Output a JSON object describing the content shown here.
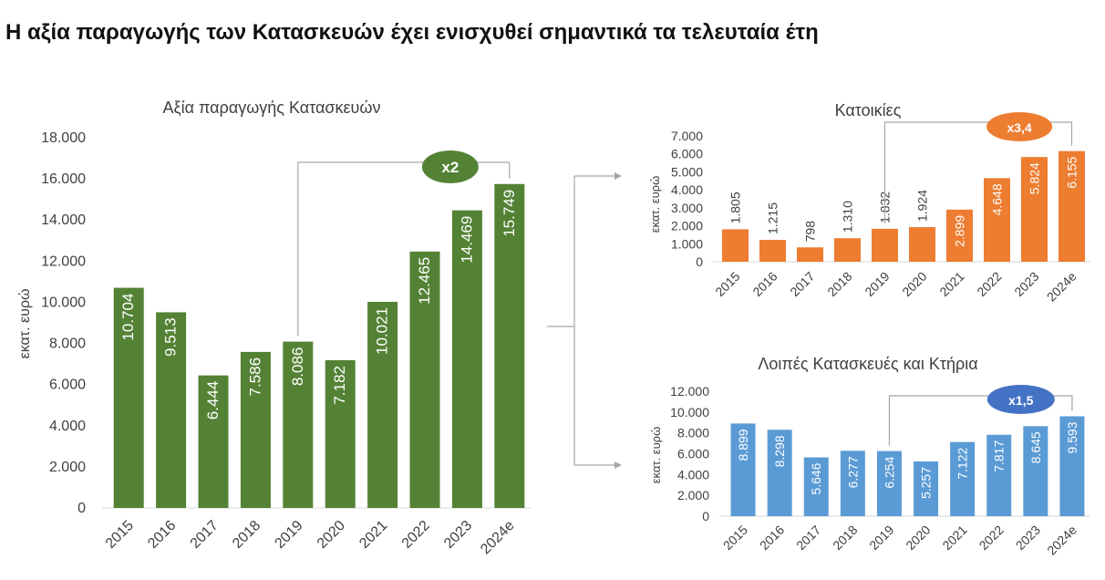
{
  "headline": "Η αξία παραγωγής των Κατασκευών έχει ενισχυθεί σημαντικά τα τελευταία έτη",
  "chart_data": [
    {
      "id": "total",
      "type": "bar",
      "title": "Αξία παραγωγής Κατασκευών",
      "ylabel": "εκατ. ευρώ",
      "xlabel": "",
      "categories": [
        "2015",
        "2016",
        "2017",
        "2018",
        "2019",
        "2020",
        "2021",
        "2022",
        "2023",
        "2024e"
      ],
      "values": [
        10704,
        9513,
        6444,
        7586,
        8086,
        7182,
        10021,
        12465,
        14469,
        15749
      ],
      "value_labels": [
        "10.704",
        "9.513",
        "6.444",
        "7.586",
        "8.086",
        "7.182",
        "10.021",
        "12.465",
        "14.469",
        "15.749"
      ],
      "ylim": [
        0,
        18000
      ],
      "yticks": [
        0,
        2000,
        4000,
        6000,
        8000,
        10000,
        12000,
        14000,
        16000,
        18000
      ],
      "ytick_labels": [
        "0",
        "2.000",
        "4.000",
        "6.000",
        "8.000",
        "10.000",
        "12.000",
        "14.000",
        "16.000",
        "18.000"
      ],
      "color": "#548235",
      "grid": false,
      "annotation": {
        "text": "x2",
        "from": "2019",
        "to": "2024e",
        "color": "#548235"
      }
    },
    {
      "id": "housing",
      "type": "bar",
      "title": "Κατοικίες",
      "ylabel": "εκατ. ευρώ",
      "xlabel": "",
      "categories": [
        "2015",
        "2016",
        "2017",
        "2018",
        "2019",
        "2020",
        "2021",
        "2022",
        "2023",
        "2024e"
      ],
      "values": [
        1805,
        1215,
        798,
        1310,
        1832,
        1924,
        2899,
        4648,
        5824,
        6155
      ],
      "value_labels": [
        "1.805",
        "1.215",
        "798",
        "1.310",
        "1.832",
        "1.924",
        "2.899",
        "4.648",
        "5.824",
        "6.155"
      ],
      "ylim": [
        0,
        7000
      ],
      "yticks": [
        0,
        1000,
        2000,
        3000,
        4000,
        5000,
        6000,
        7000
      ],
      "ytick_labels": [
        "0",
        "1.000",
        "2.000",
        "3.000",
        "4.000",
        "5.000",
        "6.000",
        "7.000"
      ],
      "color": "#ED7D31",
      "grid": false,
      "annotation": {
        "text": "x3,4",
        "from": "2019",
        "to": "2024e",
        "color": "#ED7D31"
      }
    },
    {
      "id": "other",
      "type": "bar",
      "title": "Λοιπές Κατασκευές και Κτήρια",
      "ylabel": "εκατ. ευρώ",
      "xlabel": "",
      "categories": [
        "2015",
        "2016",
        "2017",
        "2018",
        "2019",
        "2020",
        "2021",
        "2022",
        "2023",
        "2024e"
      ],
      "values": [
        8899,
        8298,
        5646,
        6277,
        6254,
        5257,
        7122,
        7817,
        8645,
        9593
      ],
      "value_labels": [
        "8.899",
        "8.298",
        "5.646",
        "6.277",
        "6.254",
        "5.257",
        "7.122",
        "7.817",
        "8.645",
        "9.593"
      ],
      "ylim": [
        0,
        12000
      ],
      "yticks": [
        0,
        2000,
        4000,
        6000,
        8000,
        10000,
        12000
      ],
      "ytick_labels": [
        "0",
        "2.000",
        "4.000",
        "6.000",
        "8.000",
        "10.000",
        "12.000"
      ],
      "color": "#5B9BD5",
      "grid": false,
      "annotation": {
        "text": "x1,5",
        "from": "2019",
        "to": "2024e",
        "color": "#4472C4"
      }
    }
  ]
}
